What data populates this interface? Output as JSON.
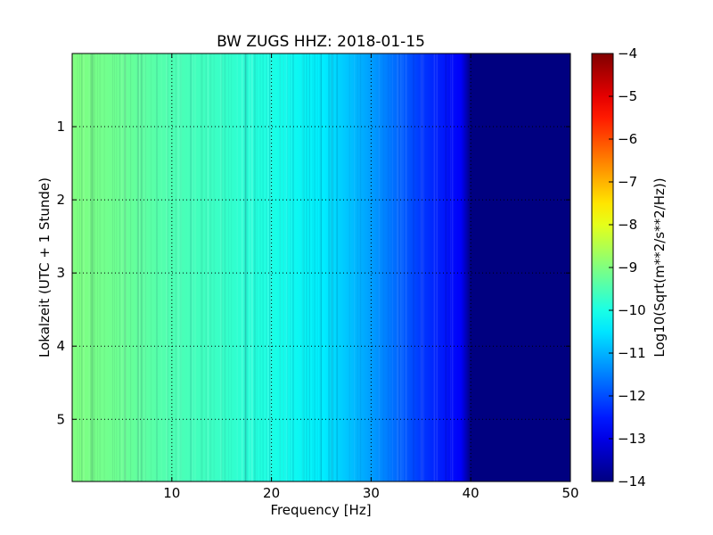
{
  "chart_data": {
    "type": "heatmap",
    "title": "BW ZUGS HHZ: 2018-01-15",
    "xlabel": "Frequency [Hz]",
    "ylabel": "Lokalzeit (UTC + 1 Stunde)",
    "xlim": [
      0,
      50
    ],
    "ylim": [
      5.85,
      0
    ],
    "x_ticks": [
      10,
      20,
      30,
      40,
      50
    ],
    "y_ticks": [
      1,
      2,
      3,
      4,
      5
    ],
    "grid": true,
    "colormap": "jet",
    "colorbar": {
      "label": "Log10(Sqrt(m**2/s**2/Hz))",
      "range": [
        -14,
        -4
      ],
      "ticks": [
        -4,
        -5,
        -6,
        -7,
        -8,
        -9,
        -10,
        -11,
        -12,
        -13,
        -14
      ]
    },
    "frequency_profile": [
      {
        "f": 0,
        "v": -9.0
      },
      {
        "f": 5,
        "v": -9.2
      },
      {
        "f": 10,
        "v": -9.5
      },
      {
        "f": 15,
        "v": -9.7
      },
      {
        "f": 20,
        "v": -10.0
      },
      {
        "f": 25,
        "v": -10.4
      },
      {
        "f": 30,
        "v": -11.2
      },
      {
        "f": 35,
        "v": -12.2
      },
      {
        "f": 39,
        "v": -12.8
      },
      {
        "f": 40,
        "v": -14.0
      },
      {
        "f": 50,
        "v": -14.0
      }
    ]
  }
}
